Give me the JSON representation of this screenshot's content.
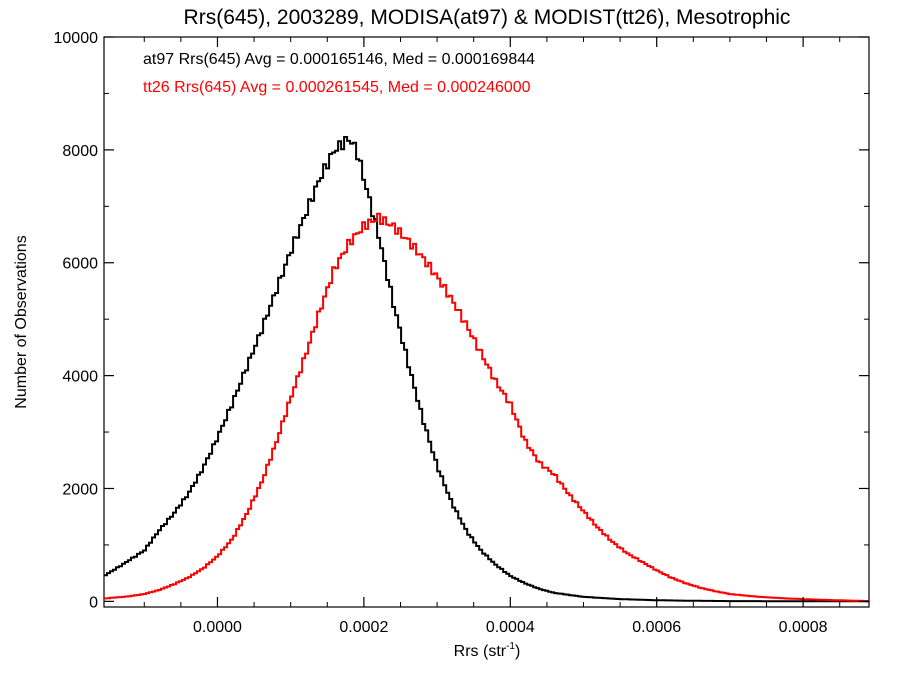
{
  "chart_data": {
    "type": "line",
    "title": "Rrs(645), 2003289, MODISA(at97) & MODIST(tt26), Mesotrophic",
    "xlabel": "Rrs (str",
    "xlabel_sup": "-1",
    "xlabel_end": ")",
    "ylabel": "Number of Observations",
    "xlim": [
      -0.000155,
      0.00089
    ],
    "ylim": [
      -100,
      10000
    ],
    "x_ticks": [
      0.0,
      0.0002,
      0.0004,
      0.0006,
      0.0008
    ],
    "x_tick_labels": [
      "0.0000",
      "0.0002",
      "0.0004",
      "0.0006",
      "0.0008"
    ],
    "y_ticks": [
      0,
      2000,
      4000,
      6000,
      8000,
      10000
    ],
    "y_tick_labels": [
      "0",
      "2000",
      "4000",
      "6000",
      "8000",
      "10000"
    ],
    "grid": false,
    "step_style": "histogram",
    "annotations": [
      {
        "text": "at97 Rrs(645) Avg = 0.000165146, Med = 0.000169844",
        "color": "#000000"
      },
      {
        "text": "tt26 Rrs(645) Avg = 0.000261545, Med = 0.000246000",
        "color": "#ff0000"
      }
    ],
    "series": [
      {
        "color": "#000000",
        "x": [
          -0.000155,
          -0.00013,
          -0.0001,
          -8e-05,
          -6e-05,
          -4e-05,
          -2e-05,
          0.0,
          2e-05,
          4e-05,
          6e-05,
          8e-05,
          0.0001,
          0.00012,
          0.00014,
          0.00016,
          0.00018,
          0.00019,
          0.0002,
          0.00022,
          0.00024,
          0.00026,
          0.00028,
          0.0003,
          0.00032,
          0.00034,
          0.00036,
          0.00038,
          0.0004,
          0.00042,
          0.00044,
          0.00046,
          0.0005,
          0.00055,
          0.0006,
          0.00065,
          0.0007,
          0.0008,
          0.00089
        ],
        "y": [
          450,
          650,
          900,
          1250,
          1550,
          1900,
          2350,
          2900,
          3500,
          4150,
          4800,
          5500,
          6200,
          6850,
          7500,
          8000,
          8200,
          8000,
          7500,
          6500,
          5300,
          4250,
          3250,
          2400,
          1750,
          1250,
          900,
          650,
          450,
          320,
          220,
          150,
          80,
          40,
          20,
          10,
          5,
          2,
          0
        ]
      },
      {
        "color": "#ff0000",
        "x": [
          -0.000155,
          -0.00012,
          -0.0001,
          -8e-05,
          -6e-05,
          -4e-05,
          -2e-05,
          0.0,
          2e-05,
          4e-05,
          6e-05,
          8e-05,
          0.0001,
          0.00012,
          0.00014,
          0.00016,
          0.00018,
          0.0002,
          0.00022,
          0.00024,
          0.00026,
          0.00028,
          0.0003,
          0.00032,
          0.00034,
          0.00036,
          0.00038,
          0.0004,
          0.00042,
          0.00044,
          0.00046,
          0.00048,
          0.0005,
          0.00052,
          0.00054,
          0.00056,
          0.00058,
          0.0006,
          0.00062,
          0.00064,
          0.00066,
          0.00068,
          0.0007,
          0.00074,
          0.00078,
          0.00082,
          0.00086,
          0.00089
        ],
        "y": [
          50,
          90,
          130,
          200,
          300,
          420,
          580,
          800,
          1100,
          1550,
          2100,
          2800,
          3600,
          4350,
          5150,
          5900,
          6350,
          6650,
          6800,
          6650,
          6400,
          6100,
          5750,
          5350,
          4900,
          4400,
          3900,
          3500,
          2850,
          2450,
          2250,
          1900,
          1600,
          1300,
          1050,
          850,
          700,
          550,
          420,
          320,
          240,
          180,
          130,
          80,
          50,
          30,
          15,
          5
        ]
      }
    ]
  }
}
